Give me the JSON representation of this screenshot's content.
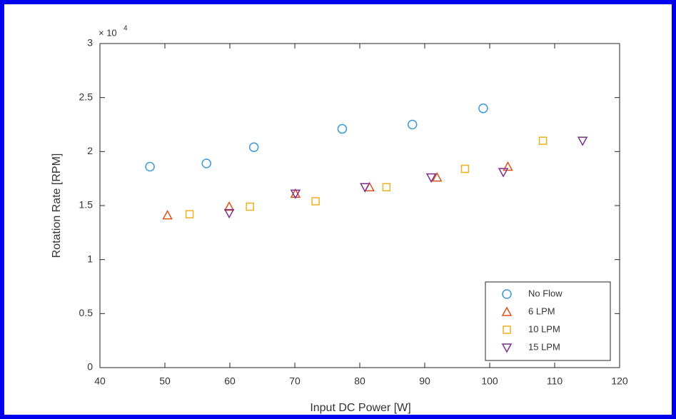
{
  "chart_data": {
    "type": "scatter",
    "xlabel": "Input DC Power [W]",
    "ylabel": "Rotation Rate [RPM]",
    "y_multiplier": {
      "base": "× 10",
      "exponent": "4"
    },
    "xlim": [
      40,
      120
    ],
    "xticks": [
      40,
      50,
      60,
      70,
      80,
      90,
      100,
      110,
      120
    ],
    "ylim": [
      0,
      3
    ],
    "yticks": [
      0,
      0.5,
      1,
      1.5,
      2,
      2.5,
      3
    ],
    "legend": "lower right",
    "series": [
      {
        "name": "No Flow",
        "color": "#3a9ad4",
        "marker": "circle",
        "x": [
          47.7,
          56.4,
          63.7,
          77.3,
          88.1,
          99.0
        ],
        "values": [
          1.86,
          1.89,
          2.04,
          2.21,
          2.25,
          2.4
        ]
      },
      {
        "name": "6 LPM",
        "color": "#d95319",
        "marker": "triangle-up",
        "x": [
          50.4,
          59.9,
          70.1,
          81.5,
          91.9,
          102.8
        ],
        "values": [
          1.41,
          1.49,
          1.61,
          1.67,
          1.76,
          1.86
        ]
      },
      {
        "name": "10 LPM",
        "color": "#edb120",
        "marker": "square",
        "x": [
          53.8,
          63.1,
          73.2,
          84.1,
          96.2,
          108.2
        ],
        "values": [
          1.42,
          1.49,
          1.54,
          1.67,
          1.84,
          2.1
        ]
      },
      {
        "name": "15 LPM",
        "color": "#7e2f8e",
        "marker": "triangle-down",
        "x": [
          59.9,
          70.1,
          80.8,
          91.0,
          102.1,
          114.3
        ],
        "values": [
          1.43,
          1.61,
          1.67,
          1.76,
          1.81,
          2.1
        ]
      }
    ]
  }
}
